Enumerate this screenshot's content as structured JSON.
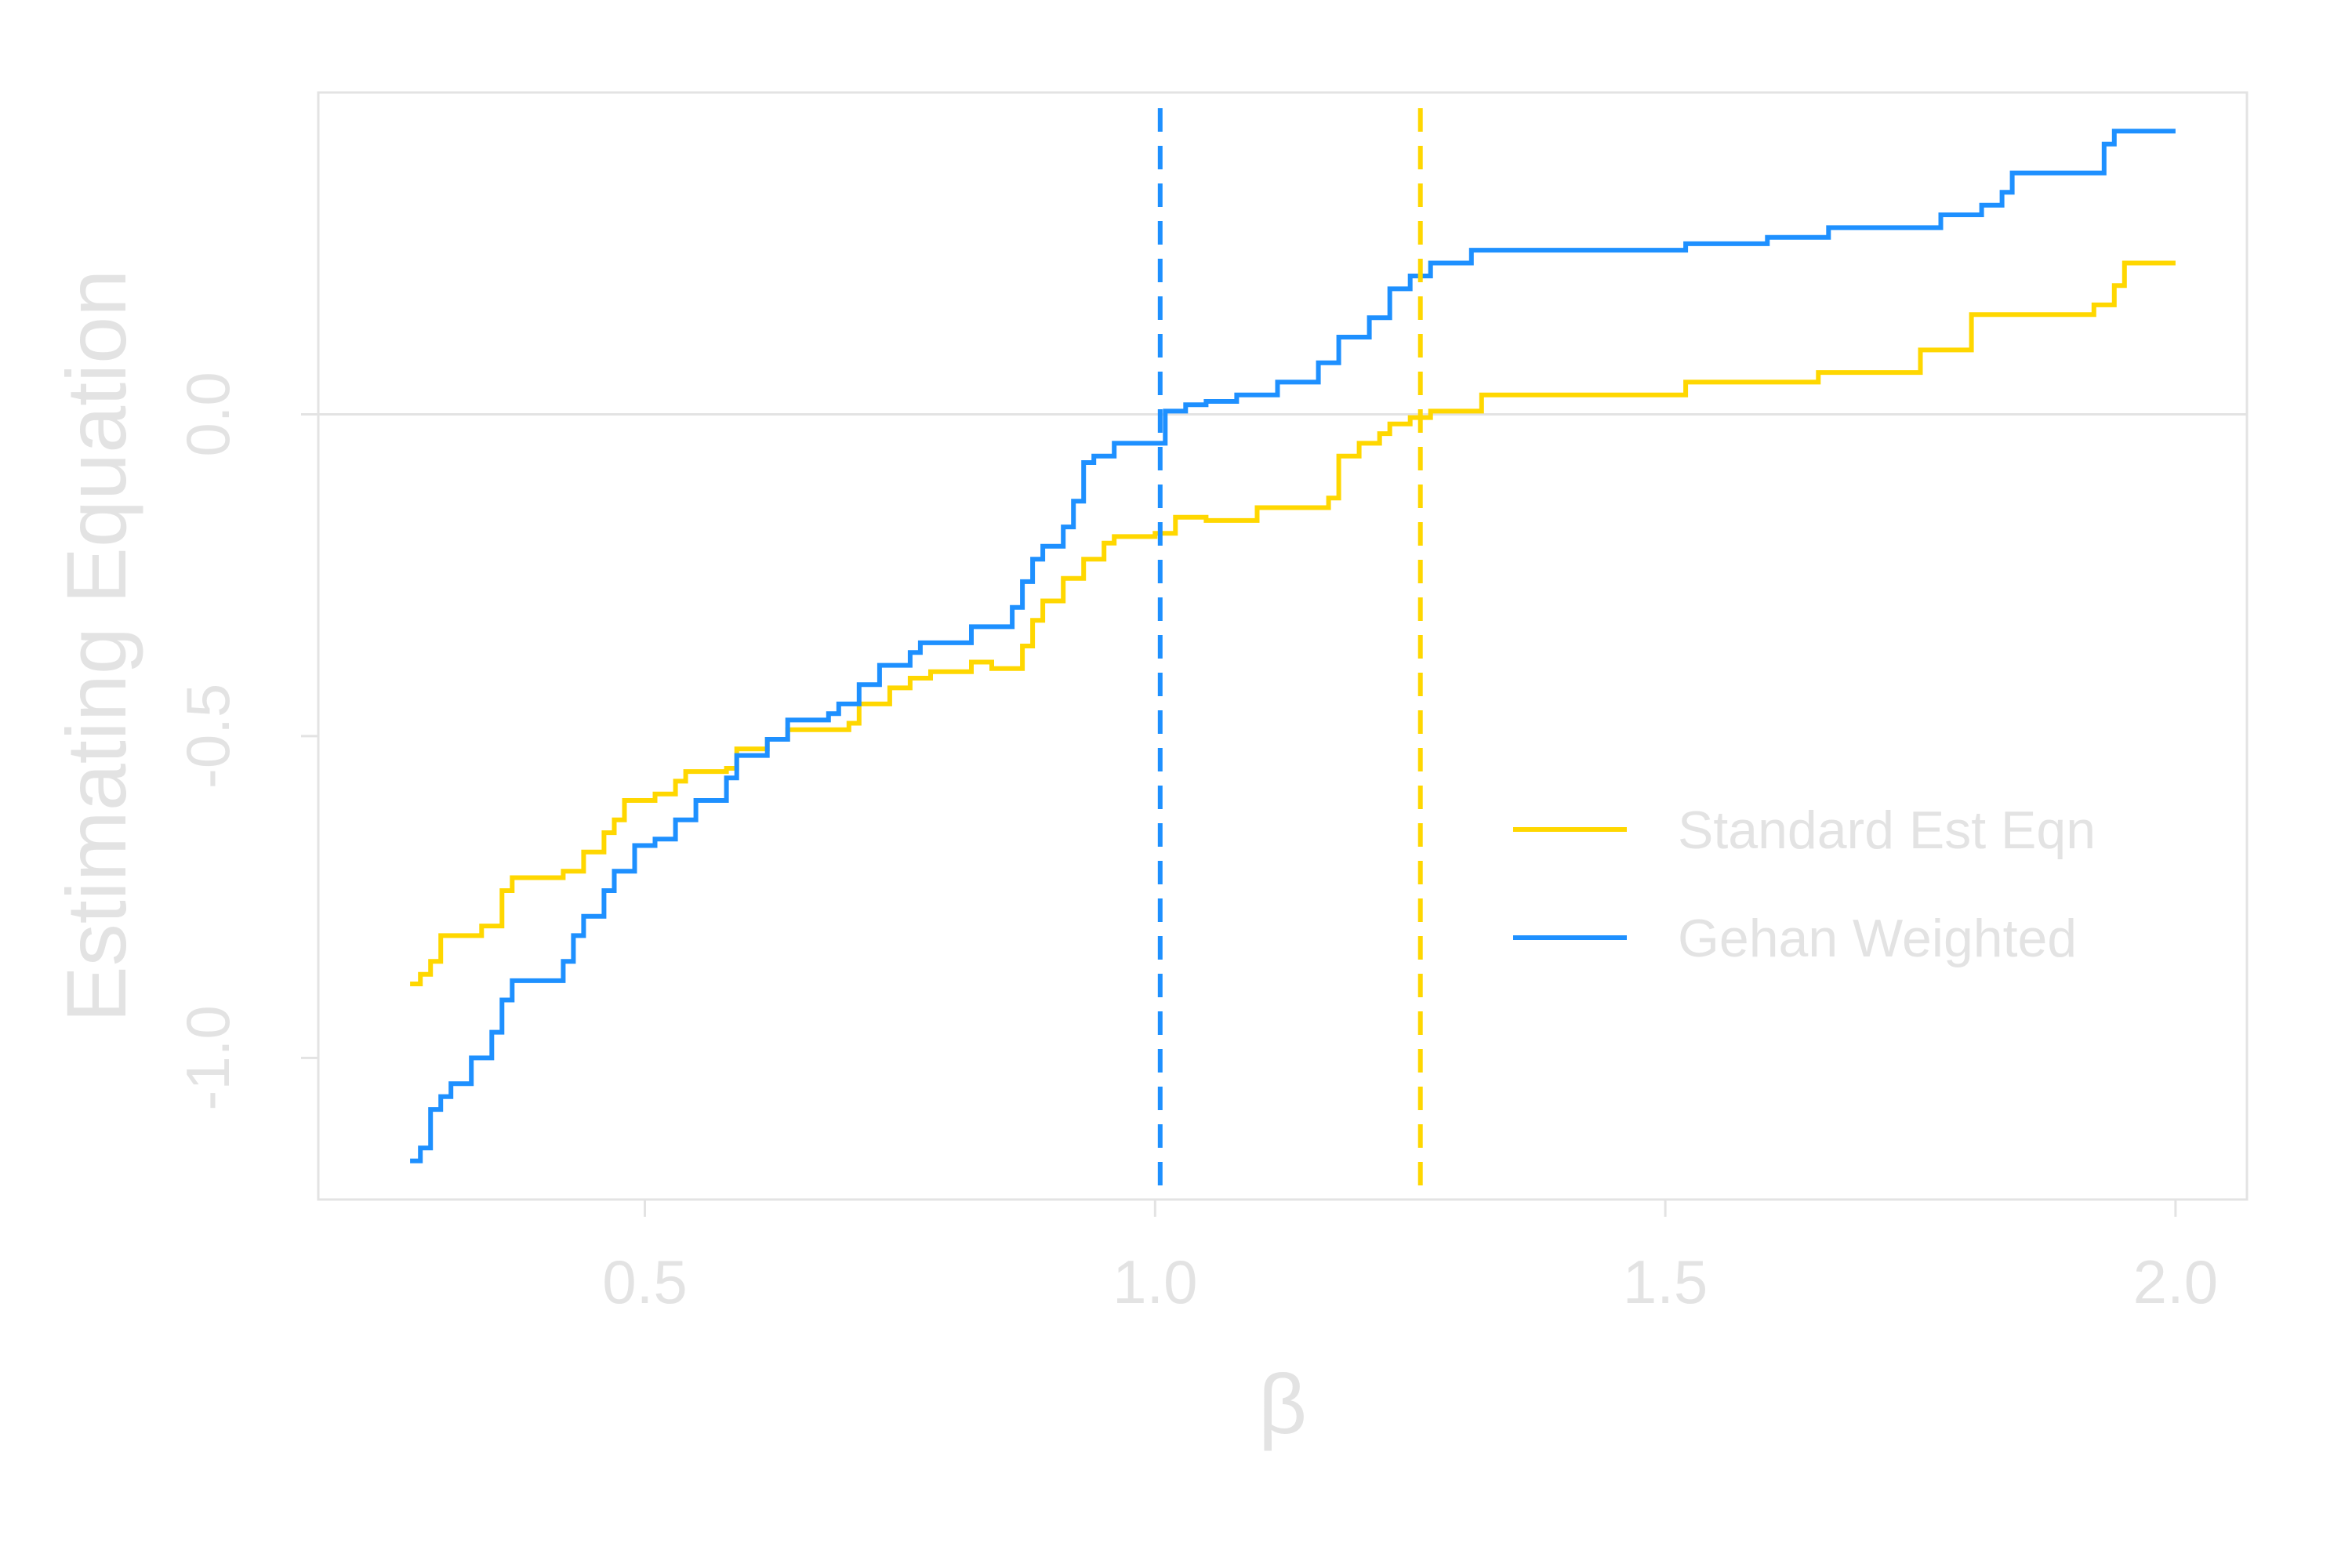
{
  "chart_data": {
    "type": "line",
    "title": "",
    "xlabel": "β",
    "ylabel": "Estimating Equation",
    "xlim": [
      0.18,
      2.07
    ],
    "ylim": [
      -1.22,
      0.5
    ],
    "x_ticks": [
      0.5,
      1.0,
      1.5,
      2.0
    ],
    "x_tick_labels": [
      "0.5",
      "1.0",
      "1.5",
      "2.0"
    ],
    "y_ticks": [
      -1.0,
      -0.5,
      0.0
    ],
    "y_tick_labels": [
      "-1.0",
      "-0.5",
      "0.0"
    ],
    "grid": false,
    "reference_line_y": 0.0,
    "legend_position": "bottom-right",
    "colors": {
      "frame": "#e3e3e3",
      "text": "#e3e3e3"
    },
    "series": [
      {
        "name": "Standard Est Eqn",
        "color": "#FFD700",
        "step": true,
        "vline": 1.26,
        "points": [
          [
            0.27,
            -0.885
          ],
          [
            0.28,
            -0.87
          ],
          [
            0.29,
            -0.85
          ],
          [
            0.3,
            -0.81
          ],
          [
            0.34,
            -0.795
          ],
          [
            0.36,
            -0.74
          ],
          [
            0.37,
            -0.72
          ],
          [
            0.42,
            -0.71
          ],
          [
            0.44,
            -0.68
          ],
          [
            0.46,
            -0.65
          ],
          [
            0.47,
            -0.63
          ],
          [
            0.48,
            -0.6
          ],
          [
            0.51,
            -0.59
          ],
          [
            0.53,
            -0.57
          ],
          [
            0.54,
            -0.555
          ],
          [
            0.58,
            -0.55
          ],
          [
            0.59,
            -0.52
          ],
          [
            0.62,
            -0.505
          ],
          [
            0.64,
            -0.49
          ],
          [
            0.7,
            -0.48
          ],
          [
            0.71,
            -0.45
          ],
          [
            0.74,
            -0.425
          ],
          [
            0.76,
            -0.41
          ],
          [
            0.78,
            -0.4
          ],
          [
            0.82,
            -0.385
          ],
          [
            0.84,
            -0.395
          ],
          [
            0.87,
            -0.36
          ],
          [
            0.88,
            -0.32
          ],
          [
            0.89,
            -0.29
          ],
          [
            0.91,
            -0.255
          ],
          [
            0.93,
            -0.225
          ],
          [
            0.95,
            -0.2
          ],
          [
            0.96,
            -0.19
          ],
          [
            1.0,
            -0.185
          ],
          [
            1.02,
            -0.16
          ],
          [
            1.05,
            -0.165
          ],
          [
            1.1,
            -0.145
          ],
          [
            1.17,
            -0.13
          ],
          [
            1.18,
            -0.065
          ],
          [
            1.2,
            -0.045
          ],
          [
            1.22,
            -0.03
          ],
          [
            1.23,
            -0.015
          ],
          [
            1.25,
            -0.005
          ],
          [
            1.27,
            0.005
          ],
          [
            1.32,
            0.03
          ],
          [
            1.52,
            0.05
          ],
          [
            1.65,
            0.065
          ],
          [
            1.75,
            0.1
          ],
          [
            1.8,
            0.155
          ],
          [
            1.92,
            0.17
          ],
          [
            1.94,
            0.2
          ],
          [
            1.95,
            0.235
          ],
          [
            2.0,
            0.235
          ]
        ]
      },
      {
        "name": "Gehan Weighted",
        "color": "#1E90FF",
        "step": true,
        "vline": 1.005,
        "points": [
          [
            0.27,
            -1.16
          ],
          [
            0.28,
            -1.14
          ],
          [
            0.29,
            -1.08
          ],
          [
            0.3,
            -1.06
          ],
          [
            0.31,
            -1.04
          ],
          [
            0.33,
            -1.0
          ],
          [
            0.35,
            -0.96
          ],
          [
            0.36,
            -0.91
          ],
          [
            0.37,
            -0.88
          ],
          [
            0.42,
            -0.85
          ],
          [
            0.43,
            -0.81
          ],
          [
            0.44,
            -0.78
          ],
          [
            0.46,
            -0.74
          ],
          [
            0.47,
            -0.71
          ],
          [
            0.49,
            -0.67
          ],
          [
            0.51,
            -0.66
          ],
          [
            0.53,
            -0.63
          ],
          [
            0.55,
            -0.6
          ],
          [
            0.58,
            -0.565
          ],
          [
            0.59,
            -0.53
          ],
          [
            0.62,
            -0.505
          ],
          [
            0.64,
            -0.475
          ],
          [
            0.68,
            -0.465
          ],
          [
            0.69,
            -0.45
          ],
          [
            0.71,
            -0.42
          ],
          [
            0.73,
            -0.39
          ],
          [
            0.76,
            -0.37
          ],
          [
            0.77,
            -0.355
          ],
          [
            0.79,
            -0.355
          ],
          [
            0.82,
            -0.33
          ],
          [
            0.86,
            -0.3
          ],
          [
            0.87,
            -0.26
          ],
          [
            0.88,
            -0.225
          ],
          [
            0.89,
            -0.205
          ],
          [
            0.91,
            -0.175
          ],
          [
            0.92,
            -0.135
          ],
          [
            0.93,
            -0.075
          ],
          [
            0.94,
            -0.065
          ],
          [
            0.96,
            -0.045
          ],
          [
            1.01,
            0.005
          ],
          [
            1.03,
            0.015
          ],
          [
            1.05,
            0.02
          ],
          [
            1.08,
            0.03
          ],
          [
            1.12,
            0.05
          ],
          [
            1.16,
            0.08
          ],
          [
            1.18,
            0.12
          ],
          [
            1.21,
            0.15
          ],
          [
            1.23,
            0.195
          ],
          [
            1.25,
            0.215
          ],
          [
            1.27,
            0.235
          ],
          [
            1.31,
            0.255
          ],
          [
            1.52,
            0.265
          ],
          [
            1.6,
            0.275
          ],
          [
            1.66,
            0.29
          ],
          [
            1.77,
            0.31
          ],
          [
            1.81,
            0.325
          ],
          [
            1.83,
            0.345
          ],
          [
            1.84,
            0.375
          ],
          [
            1.93,
            0.42
          ],
          [
            1.94,
            0.44
          ],
          [
            2.0,
            0.44
          ]
        ]
      }
    ]
  }
}
